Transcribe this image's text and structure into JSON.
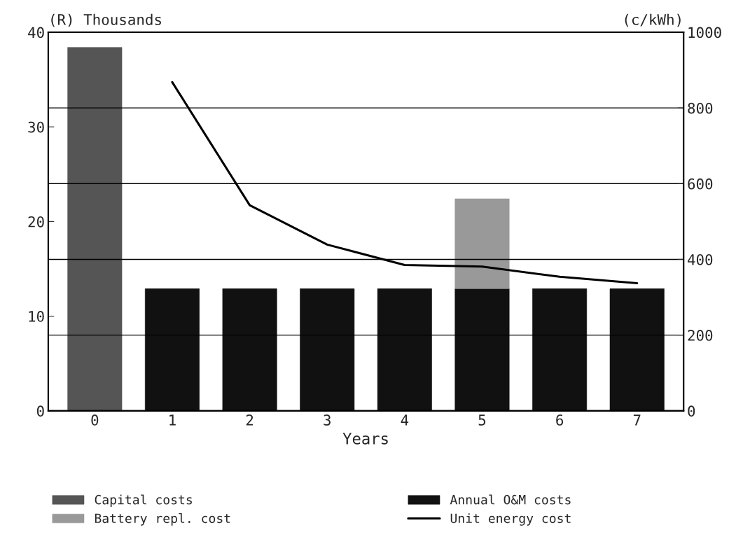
{
  "chart_data": {
    "type": "bar",
    "stacked": true,
    "xlabel": "Years",
    "ylabel": "(R) Thousands",
    "y2label": "(c/kWh)",
    "categories": [
      "0",
      "1",
      "2",
      "3",
      "4",
      "5",
      "6",
      "7"
    ],
    "series": [
      {
        "name": "Capital costs",
        "color": "#555555",
        "values": [
          38.4,
          null,
          null,
          null,
          null,
          null,
          null,
          null
        ]
      },
      {
        "name": "Annual O&M costs",
        "color": "#111111",
        "values": [
          null,
          12.9,
          12.9,
          12.9,
          12.9,
          12.9,
          12.9,
          12.9
        ]
      },
      {
        "name": "Battery repl. cost",
        "color": "#999999",
        "values": [
          null,
          null,
          null,
          null,
          null,
          9.5,
          null,
          null
        ]
      },
      {
        "name": "Unit energy cost",
        "type": "line",
        "axis": "y2",
        "color": "#000000",
        "values": [
          null,
          868,
          543,
          439,
          385,
          381,
          354,
          337
        ]
      }
    ],
    "ylim": [
      0,
      40
    ],
    "yticks": [
      0,
      10,
      20,
      30,
      40
    ],
    "y2lim": [
      0,
      1000
    ],
    "y2ticks": [
      0,
      200,
      400,
      600,
      800,
      1000
    ],
    "grid": "y",
    "legend": "bottom",
    "marker": "none",
    "line_style": "solid"
  }
}
